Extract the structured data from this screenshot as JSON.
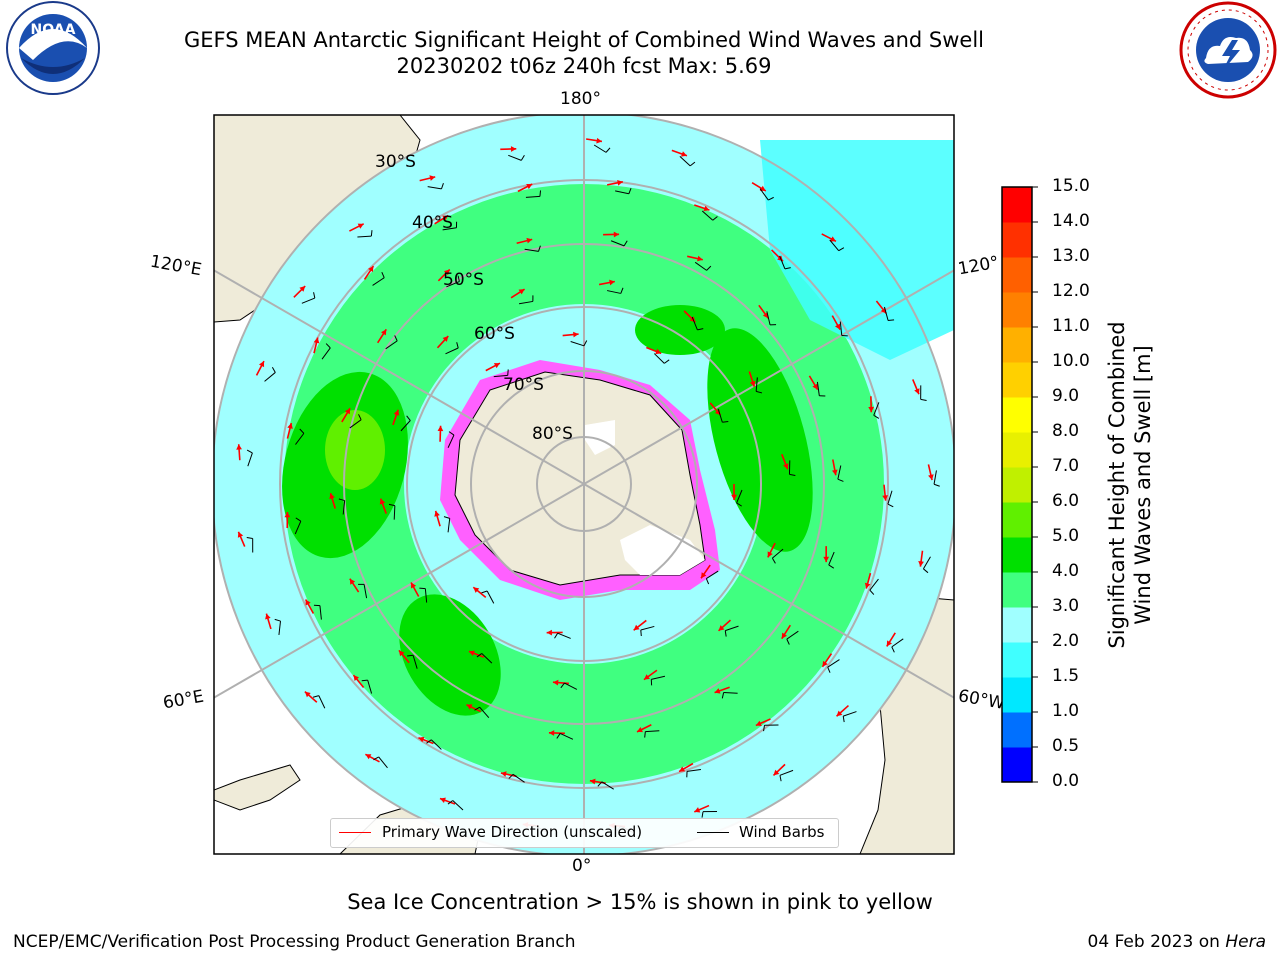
{
  "header": {
    "title_line1": "GEFS MEAN Antarctic Significant Height of Combined Wind Waves and Swell",
    "title_line2": "20230202 t06z 240h fcst   Max: 5.69"
  },
  "logos": {
    "left": "noaa-logo",
    "right": "national-weather-service-logo"
  },
  "map": {
    "projection": "south polar stereographic",
    "longitude_labels": {
      "top": "180°",
      "bottom": "0°",
      "upper_left": "120°E",
      "upper_right": "120°",
      "lower_left": "60°E",
      "lower_right": "60°W"
    },
    "latitude_labels": [
      "30°S",
      "40°S",
      "50°S",
      "60°S",
      "70°S",
      "80°S"
    ],
    "legend": {
      "wave": "Primary Wave Direction (unscaled)",
      "barb": "Wind Barbs"
    }
  },
  "colorbar": {
    "title_line1": "Significant Height of Combined",
    "title_line2": "Wind Waves and Swell [m]",
    "ticks": [
      "0.0",
      "0.5",
      "1.0",
      "1.5",
      "2.0",
      "3.0",
      "4.0",
      "5.0",
      "6.0",
      "7.0",
      "8.0",
      "9.0",
      "10.0",
      "11.0",
      "12.0",
      "13.0",
      "14.0",
      "15.0"
    ],
    "colors": [
      "#0000ff",
      "#0070ff",
      "#00e8ff",
      "#40ffff",
      "#a0ffff",
      "#40ff80",
      "#00e000",
      "#60f000",
      "#c0f000",
      "#e8f000",
      "#ffff00",
      "#ffd000",
      "#ffb000",
      "#ff8000",
      "#ff6000",
      "#ff3000",
      "#ff0000"
    ]
  },
  "notes": {
    "sea_ice": "Sea Ice Concentration > 15% is shown in pink to yellow",
    "credit": "NCEP/EMC/Verification Post Processing Product Generation Branch",
    "date": "04 Feb 2023 on ",
    "host": "Hera"
  },
  "colors": {
    "land": "#efebd9",
    "ocean_low": "#a0ffff",
    "ocean_mid": "#40ff80",
    "ocean_high": "#00e000",
    "wave_arrow": "#ff0000",
    "wind_barb": "#000000",
    "grid": "#b0b0b0"
  }
}
